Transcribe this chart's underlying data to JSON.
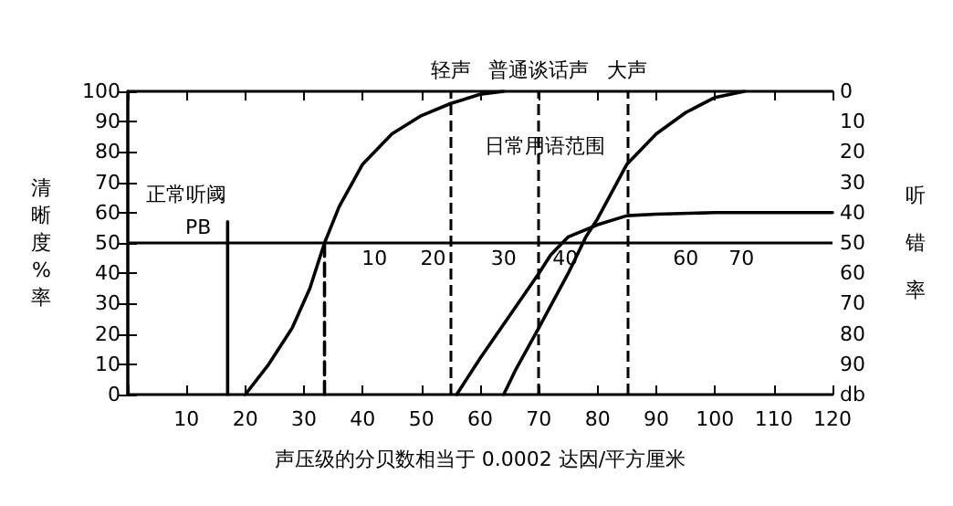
{
  "chart_data": {
    "type": "line",
    "xlabel": "声压级的分贝数相当于 0.0002 达因/平方厘米",
    "ylabel": "清晰度%率",
    "y2label": "听错率",
    "xlim": [
      0,
      120
    ],
    "xticks": [
      {
        "value": 0,
        "label": null
      },
      10,
      20,
      30,
      40,
      50,
      60,
      70,
      80,
      90,
      100,
      110,
      120
    ],
    "ylim": [
      0,
      100
    ],
    "yticks": [
      0,
      10,
      20,
      30,
      40,
      50,
      60,
      70,
      80,
      90,
      100
    ],
    "y2lim": [
      100,
      0
    ],
    "y2ticks": [
      0,
      10,
      20,
      30,
      40,
      50,
      60,
      70,
      80,
      90,
      {
        "value": 100,
        "label": "db"
      }
    ],
    "grid": false,
    "marker": "none",
    "line_style": "solid",
    "series": [
      {
        "color": "#000000",
        "x": [
          20,
          24,
          28,
          31,
          33.5,
          36,
          40,
          45,
          50,
          55,
          60,
          64
        ],
        "values": [
          0,
          10,
          22,
          35,
          50,
          62,
          76,
          86,
          92,
          96,
          99,
          100
        ]
      },
      {
        "color": "#000000",
        "x": [
          56,
          60,
          65,
          70,
          72,
          75,
          80,
          85,
          90,
          100,
          120
        ],
        "values": [
          0,
          12,
          26,
          40,
          46,
          52,
          56,
          59,
          59.5,
          60,
          60
        ]
      },
      {
        "color": "#000000",
        "x": [
          64,
          66,
          70,
          75,
          78,
          80,
          85,
          90,
          95,
          100,
          105
        ],
        "values": [
          0,
          8,
          22,
          40,
          52,
          58,
          76,
          86,
          93,
          98,
          100
        ]
      },
      {
        "color": "#000000",
        "line_style": "dashed",
        "x": [
          33.5,
          33.5
        ],
        "values": [
          0,
          50
        ]
      },
      {
        "color": "#000000",
        "x": [
          17,
          17
        ],
        "values": [
          0,
          57
        ]
      }
    ],
    "ref_lines": [
      {
        "axis": "y",
        "value": 50,
        "label": null,
        "color": "#000000",
        "line_style": "solid"
      },
      {
        "axis": "x",
        "value": 55,
        "label": "轻声",
        "color": "#000000",
        "line_style": "dashed"
      },
      {
        "axis": "x",
        "value": 70,
        "label": "普通谈话声",
        "color": "#000000",
        "line_style": "dashed"
      },
      {
        "axis": "x",
        "value": 85,
        "label": "大声",
        "color": "#000000",
        "line_style": "dashed"
      }
    ],
    "annotations": [
      "正常听阈",
      {
        "text": "PB",
        "x": 12,
        "y": 55
      },
      {
        "text": "日常用语范围",
        "x": 71,
        "y": 82
      },
      {
        "text": "10",
        "x": 42,
        "y": 45
      },
      {
        "text": "20",
        "x": 52,
        "y": 45
      },
      {
        "text": "30",
        "x": 64,
        "y": 45
      },
      {
        "text": "40",
        "x": 74.5,
        "y": 45
      },
      {
        "text": "60",
        "x": 95,
        "y": 45
      },
      {
        "text": "70",
        "x": 104.5,
        "y": 45
      }
    ]
  }
}
